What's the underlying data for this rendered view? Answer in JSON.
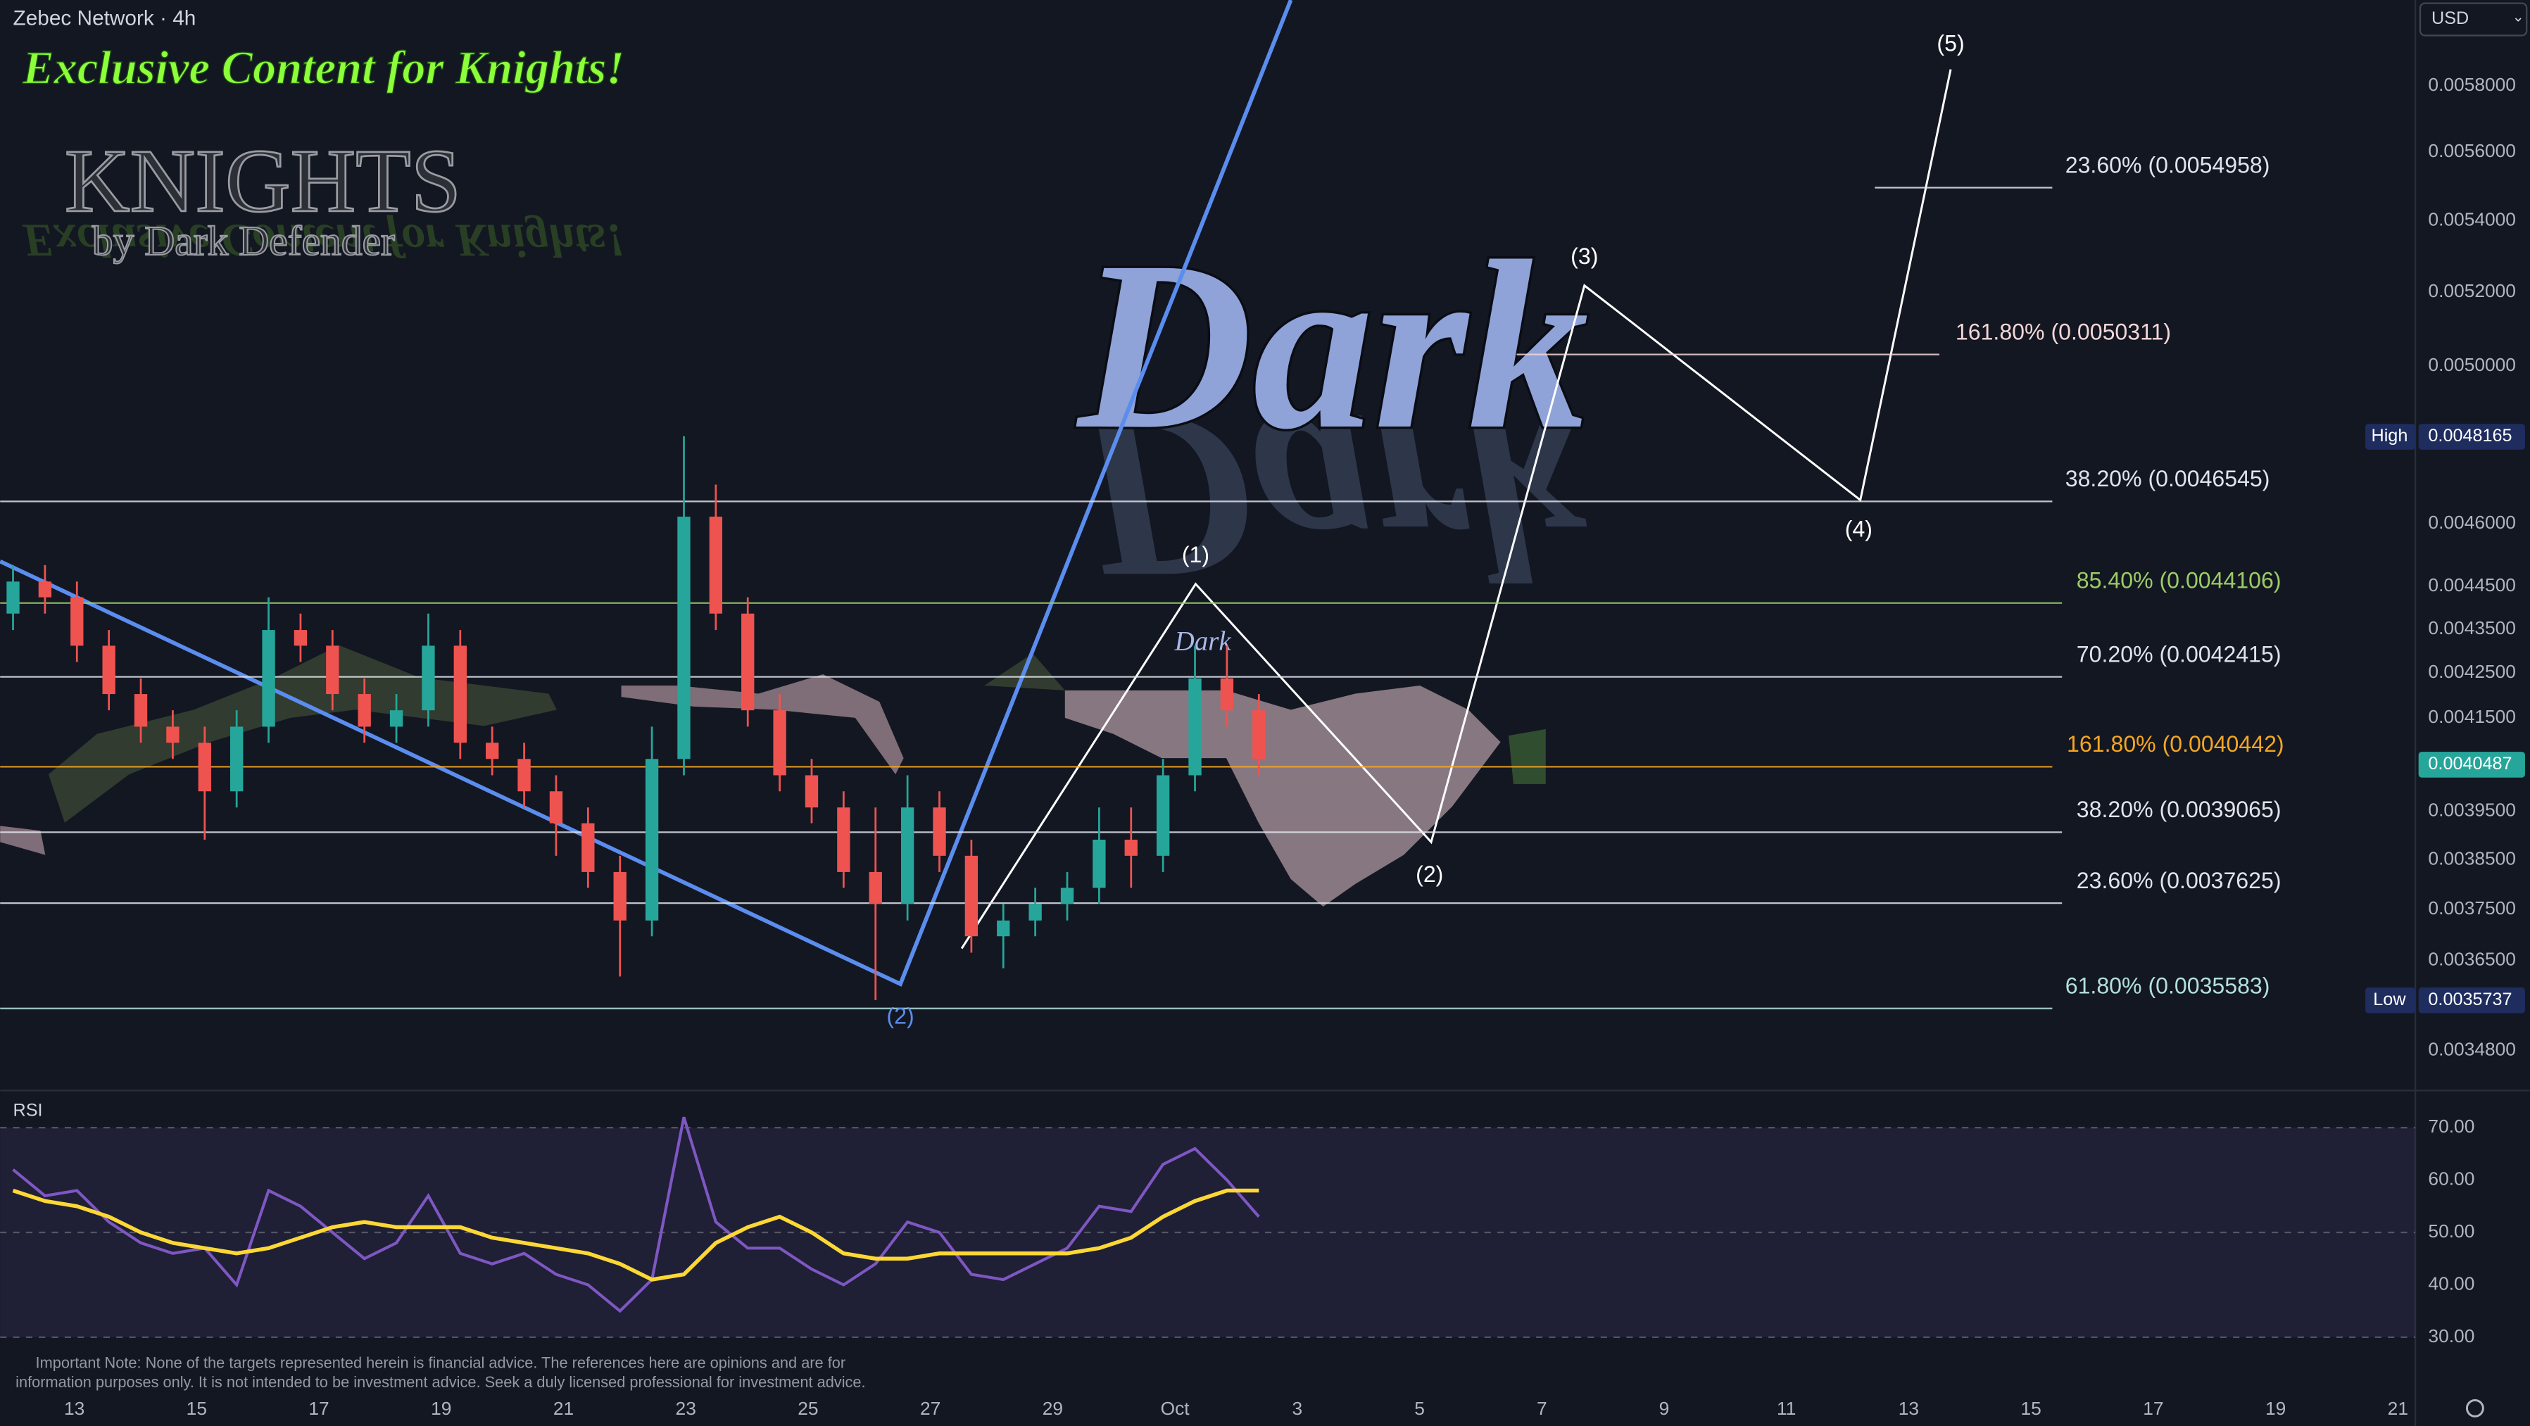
{
  "header": {
    "symbol": "Zebec Network · 4h",
    "currency": "USD"
  },
  "branding": {
    "headline": "Exclusive Content for Knights!",
    "logo_title": "KNIGHTS",
    "logo_subtitle": "by Dark Defender",
    "watermark": "Dark"
  },
  "disclaimer": "Important Note: None of the targets represented herein is financial advice. The references here are opinions and are for information purposes only. It is not intended to be investment advice. Seek a duly licensed professional for investment advice.",
  "xtick_labels": [
    "13",
    "15",
    "17",
    "19",
    "21",
    "23",
    "25",
    "27",
    "29",
    "Oct",
    "3",
    "5",
    "7",
    "9",
    "11",
    "13",
    "15",
    "17",
    "19",
    "21"
  ],
  "chart_data": [
    {
      "type": "candlestick",
      "log_scale": true,
      "up_color": "#26a69a",
      "down_color": "#ef5350",
      "ylim": [
        0.00341,
        0.00607
      ],
      "yticks": [
        {
          "value": 0.0058,
          "label": "0.0058000"
        },
        {
          "value": 0.0056,
          "label": "0.0056000"
        },
        {
          "value": 0.0054,
          "label": "0.0054000"
        },
        {
          "value": 0.0052,
          "label": "0.0052000"
        },
        {
          "value": 0.005,
          "label": "0.0050000"
        },
        {
          "value": 0.0046,
          "label": "0.0046000"
        },
        {
          "value": 0.00445,
          "label": "0.0044500"
        },
        {
          "value": 0.00435,
          "label": "0.0043500"
        },
        {
          "value": 0.00425,
          "label": "0.0042500"
        },
        {
          "value": 0.00415,
          "label": "0.0041500"
        },
        {
          "value": 0.00395,
          "label": "0.0039500"
        },
        {
          "value": 0.00385,
          "label": "0.0038500"
        },
        {
          "value": 0.00375,
          "label": "0.0037500"
        },
        {
          "value": 0.00365,
          "label": "0.0036500"
        },
        {
          "value": 0.00348,
          "label": "0.0034800"
        }
      ],
      "candles": [
        {
          "open": 0.004386,
          "high": 0.0045,
          "low": 0.004348,
          "close": 0.004461
        },
        {
          "open": 0.004461,
          "high": 0.0045,
          "low": 0.004386,
          "close": 0.004424
        },
        {
          "open": 0.004424,
          "high": 0.004461,
          "low": 0.004275,
          "close": 0.004312
        },
        {
          "open": 0.004312,
          "high": 0.004348,
          "low": 0.004167,
          "close": 0.004203
        },
        {
          "open": 0.004203,
          "high": 0.004238,
          "low": 0.004096,
          "close": 0.004131
        },
        {
          "open": 0.004131,
          "high": 0.004167,
          "low": 0.004061,
          "close": 0.004096
        },
        {
          "open": 0.004096,
          "high": 0.004131,
          "low": 0.003891,
          "close": 0.003992
        },
        {
          "open": 0.003992,
          "high": 0.004167,
          "low": 0.003958,
          "close": 0.004131
        },
        {
          "open": 0.004131,
          "high": 0.004424,
          "low": 0.004096,
          "close": 0.004348
        },
        {
          "open": 0.004348,
          "high": 0.004386,
          "low": 0.004275,
          "close": 0.004312
        },
        {
          "open": 0.004312,
          "high": 0.004348,
          "low": 0.004167,
          "close": 0.004203
        },
        {
          "open": 0.004203,
          "high": 0.004238,
          "low": 0.004096,
          "close": 0.004131
        },
        {
          "open": 0.004131,
          "high": 0.004203,
          "low": 0.004096,
          "close": 0.004167
        },
        {
          "open": 0.004167,
          "high": 0.004386,
          "low": 0.004131,
          "close": 0.004312
        },
        {
          "open": 0.004312,
          "high": 0.004348,
          "low": 0.004061,
          "close": 0.004096
        },
        {
          "open": 0.004096,
          "high": 0.004131,
          "low": 0.004026,
          "close": 0.004061
        },
        {
          "open": 0.004061,
          "high": 0.004096,
          "low": 0.003958,
          "close": 0.003992
        },
        {
          "open": 0.003992,
          "high": 0.004026,
          "low": 0.003858,
          "close": 0.003925
        },
        {
          "open": 0.003925,
          "high": 0.003958,
          "low": 0.003793,
          "close": 0.003825
        },
        {
          "open": 0.003825,
          "high": 0.003858,
          "low": 0.003619,
          "close": 0.003728
        },
        {
          "open": 0.003728,
          "high": 0.004131,
          "low": 0.003697,
          "close": 0.004061
        },
        {
          "open": 0.004061,
          "high": 0.004818,
          "low": 0.004026,
          "close": 0.004617
        },
        {
          "open": 0.004617,
          "high": 0.004696,
          "low": 0.004348,
          "close": 0.004386
        },
        {
          "open": 0.004386,
          "high": 0.004424,
          "low": 0.004131,
          "close": 0.004167
        },
        {
          "open": 0.004167,
          "high": 0.004203,
          "low": 0.003992,
          "close": 0.004026
        },
        {
          "open": 0.004026,
          "high": 0.004061,
          "low": 0.003925,
          "close": 0.003958
        },
        {
          "open": 0.003958,
          "high": 0.003992,
          "low": 0.003793,
          "close": 0.003825
        },
        {
          "open": 0.003825,
          "high": 0.003958,
          "low": 0.003574,
          "close": 0.003761
        },
        {
          "open": 0.003761,
          "high": 0.004026,
          "low": 0.003728,
          "close": 0.003958
        },
        {
          "open": 0.003958,
          "high": 0.003992,
          "low": 0.003825,
          "close": 0.003858
        },
        {
          "open": 0.003858,
          "high": 0.003891,
          "low": 0.003665,
          "close": 0.003697
        },
        {
          "open": 0.003697,
          "high": 0.003761,
          "low": 0.003635,
          "close": 0.003728
        },
        {
          "open": 0.003728,
          "high": 0.003793,
          "low": 0.003697,
          "close": 0.003761
        },
        {
          "open": 0.003761,
          "high": 0.003825,
          "low": 0.003728,
          "close": 0.003793
        },
        {
          "open": 0.003793,
          "high": 0.003958,
          "low": 0.003761,
          "close": 0.003891
        },
        {
          "open": 0.003891,
          "high": 0.003958,
          "low": 0.003793,
          "close": 0.003858
        },
        {
          "open": 0.003858,
          "high": 0.004061,
          "low": 0.003825,
          "close": 0.004026
        },
        {
          "open": 0.004026,
          "high": 0.004312,
          "low": 0.003992,
          "close": 0.004238
        },
        {
          "open": 0.004238,
          "high": 0.004312,
          "low": 0.004131,
          "close": 0.004167
        },
        {
          "open": 0.004167,
          "high": 0.004203,
          "low": 0.004026,
          "close": 0.004061
        }
      ],
      "fib_levels": [
        {
          "label": "38.20% (0.0046545)",
          "price": 0.0046545,
          "color": "#e0e3eb"
        },
        {
          "label": "85.40% (0.0044106)",
          "price": 0.0044106,
          "color": "#9ccc65"
        },
        {
          "label": "70.20% (0.0042415)",
          "price": 0.0042415,
          "color": "#e0e3eb"
        },
        {
          "label": "161.80% (0.0040442)",
          "price": 0.0040442,
          "color": "#f5a623"
        },
        {
          "label": "38.20% (0.0039065)",
          "price": 0.0039065,
          "color": "#e0e3eb"
        },
        {
          "label": "23.60% (0.0037625)",
          "price": 0.0037625,
          "color": "#e0e3eb"
        },
        {
          "label": "61.80% (0.0035583)",
          "price": 0.0035583,
          "color": "#b2dfdb"
        },
        {
          "label": "23.60% (0.0054958)",
          "price": 0.0054958,
          "color": "#e0e3eb"
        },
        {
          "label": "161.80% (0.0050311)",
          "price": 0.0050311,
          "color": "#f3d6d6"
        }
      ],
      "wave_labels": [
        "(1)",
        "(2)",
        "(3)",
        "(4)",
        "(5)",
        "(2)"
      ],
      "price_badges": [
        {
          "label": "High",
          "value": 0.0048165,
          "color": "#1e2c5e"
        },
        {
          "value": 0.0040487,
          "color": "#26a69a"
        },
        {
          "label": "Low",
          "value": 0.0035737,
          "color": "#1e2c5e"
        }
      ]
    },
    {
      "type": "line",
      "title": "RSI",
      "ylim": [
        26.6,
        77.1
      ],
      "yticks": [
        {
          "value": 70,
          "label": "70.00"
        },
        {
          "value": 60,
          "label": "60.00"
        },
        {
          "value": 50,
          "label": "50.00"
        },
        {
          "value": 40,
          "label": "40.00"
        },
        {
          "value": 30,
          "label": "30.00"
        }
      ],
      "series": [
        {
          "color": "#7e57c2",
          "values": [
            62,
            57,
            58,
            52,
            48,
            46,
            47,
            40,
            58,
            55,
            50,
            45,
            48,
            57,
            46,
            44,
            46,
            42,
            40,
            35,
            41,
            72,
            52,
            47,
            47,
            43,
            40,
            44,
            52,
            50,
            42,
            41,
            44,
            47,
            55,
            54,
            63,
            66,
            60,
            53
          ]
        },
        {
          "color": "#fdd835",
          "values": [
            58,
            56,
            55,
            53,
            50,
            48,
            47,
            46,
            47,
            49,
            51,
            52,
            51,
            51,
            51,
            49,
            48,
            47,
            46,
            44,
            41,
            42,
            48,
            51,
            53,
            50,
            46,
            45,
            45,
            46,
            46,
            46,
            46,
            46,
            47,
            49,
            53,
            56,
            58,
            58
          ]
        }
      ]
    }
  ]
}
